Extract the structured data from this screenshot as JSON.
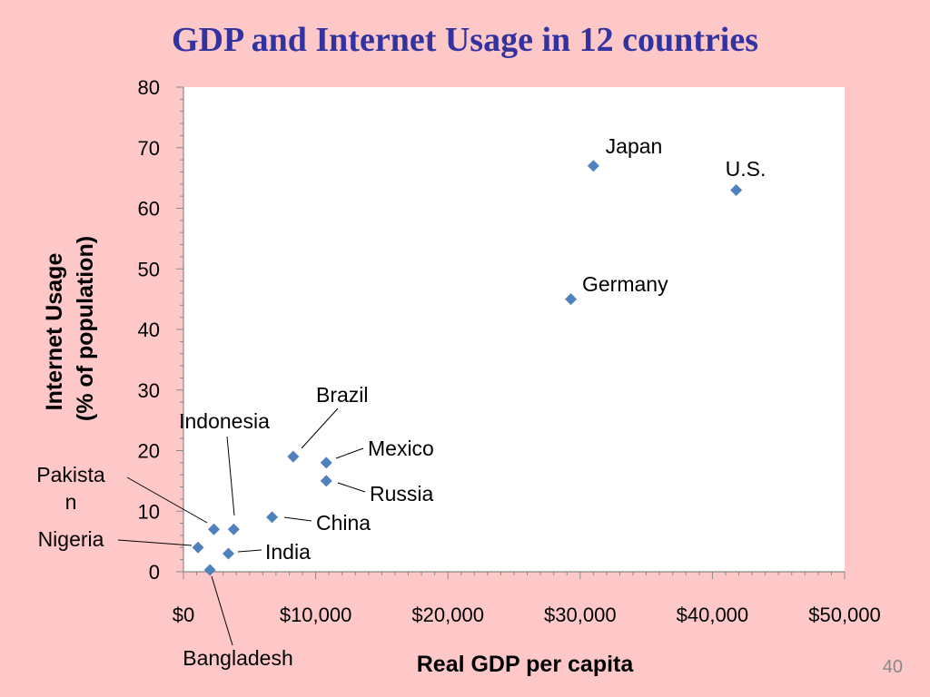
{
  "slide": {
    "title": "GDP and Internet Usage in 12 countries",
    "page_number": "40",
    "background_color": "#ffc8c8",
    "title_color": "#3333a0"
  },
  "chart_data": {
    "type": "scatter",
    "title": "GDP and Internet Usage in 12 countries",
    "xlabel": "Real GDP per capita",
    "ylabel_lines": [
      "Internet Usage",
      "(% of population)"
    ],
    "xlim": [
      0,
      50000
    ],
    "ylim": [
      0,
      80
    ],
    "x_ticks": [
      0,
      10000,
      20000,
      30000,
      40000,
      50000
    ],
    "x_tick_labels": [
      "$0",
      "$10,000",
      "$20,000",
      "$30,000",
      "$40,000",
      "$50,000"
    ],
    "y_ticks": [
      0,
      10,
      20,
      30,
      40,
      50,
      60,
      70,
      80
    ],
    "y_tick_labels": [
      "0",
      "10",
      "20",
      "30",
      "40",
      "50",
      "60",
      "70",
      "80"
    ],
    "grid": false,
    "marker": "diamond",
    "marker_color": "#4f81bd",
    "plot_background": "#ffffff",
    "points": [
      {
        "label": "Japan",
        "x": 31000,
        "y": 67
      },
      {
        "label": "U.S.",
        "x": 41800,
        "y": 63
      },
      {
        "label": "Germany",
        "x": 29300,
        "y": 45
      },
      {
        "label": "Brazil",
        "x": 8300,
        "y": 19
      },
      {
        "label": "Mexico",
        "x": 10800,
        "y": 18
      },
      {
        "label": "Russia",
        "x": 10800,
        "y": 15
      },
      {
        "label": "China",
        "x": 6700,
        "y": 9
      },
      {
        "label": "Indonesia",
        "x": 3800,
        "y": 7
      },
      {
        "label": "Pakistan",
        "x": 2300,
        "y": 7
      },
      {
        "label": "Nigeria",
        "x": 1100,
        "y": 4
      },
      {
        "label": "India",
        "x": 3400,
        "y": 3
      },
      {
        "label": "Bangladesh",
        "x": 2000,
        "y": 0.3
      }
    ]
  }
}
